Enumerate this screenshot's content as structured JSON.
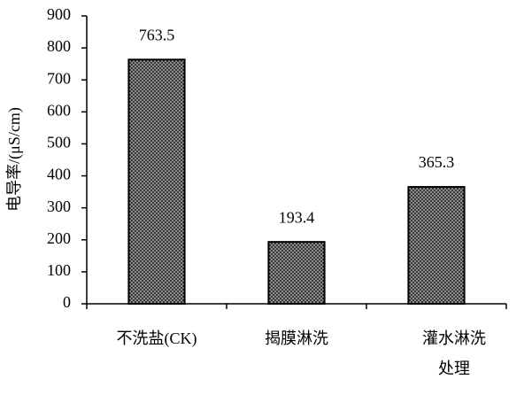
{
  "chart_data": {
    "type": "bar",
    "y_label": "电导率/(μS/cm)",
    "categories": [
      "不洗盐(CK)",
      "揭膜淋洗",
      "灌水淋洗\n处理"
    ],
    "values": [
      763.5,
      193.4,
      365.3
    ],
    "color": "#8c8c8c",
    "ylim": [
      0,
      900
    ],
    "yticks": [
      0,
      100,
      200,
      300,
      400,
      500,
      600,
      700,
      800,
      900
    ],
    "grid": false
  }
}
